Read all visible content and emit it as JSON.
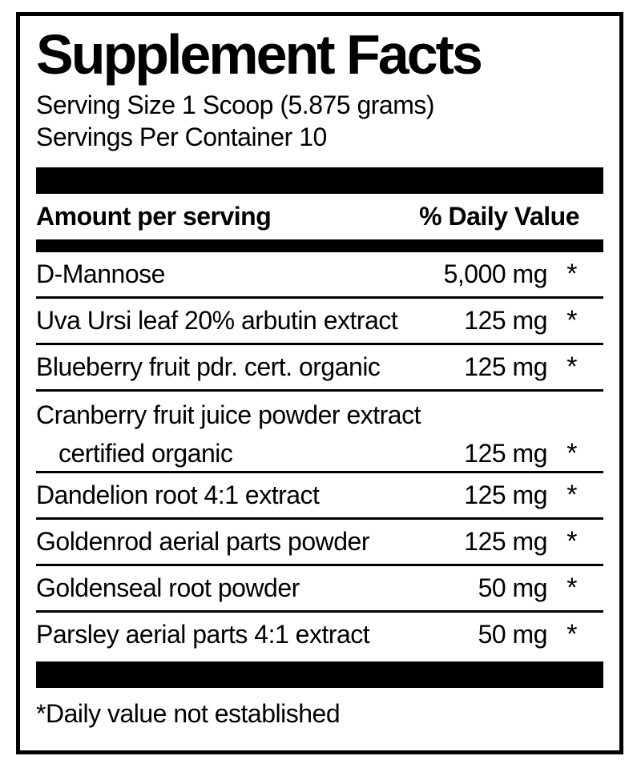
{
  "label": {
    "title": "Supplement Facts",
    "serving_size": "Serving Size 1 Scoop (5.875 grams)",
    "servings_per_container": "Servings Per Container 10",
    "columns": {
      "amount_header": "Amount per serving",
      "dv_header": "% Daily Value"
    },
    "rows": [
      {
        "name": "D-Mannose",
        "amount": "5,000 mg",
        "dv": "*"
      },
      {
        "name": "Uva Ursi leaf 20% arbutin extract",
        "amount": "125 mg",
        "dv": "*"
      },
      {
        "name": "Blueberry fruit pdr. cert. organic",
        "amount": "125 mg",
        "dv": "*"
      },
      {
        "name": "Cranberry fruit juice powder extract",
        "name_line2": "certified organic",
        "amount": "125 mg",
        "dv": "*"
      },
      {
        "name": "Dandelion root 4:1 extract",
        "amount": "125 mg",
        "dv": "*"
      },
      {
        "name": "Goldenrod aerial parts powder",
        "amount": "125 mg",
        "dv": "*"
      },
      {
        "name": "Goldenseal root powder",
        "amount": "50 mg",
        "dv": "*"
      },
      {
        "name": "Parsley aerial parts 4:1 extract",
        "amount": "50 mg",
        "dv": "*"
      }
    ],
    "footnote": "*Daily value not established",
    "colors": {
      "ink": "#000000",
      "background": "#ffffff"
    }
  }
}
